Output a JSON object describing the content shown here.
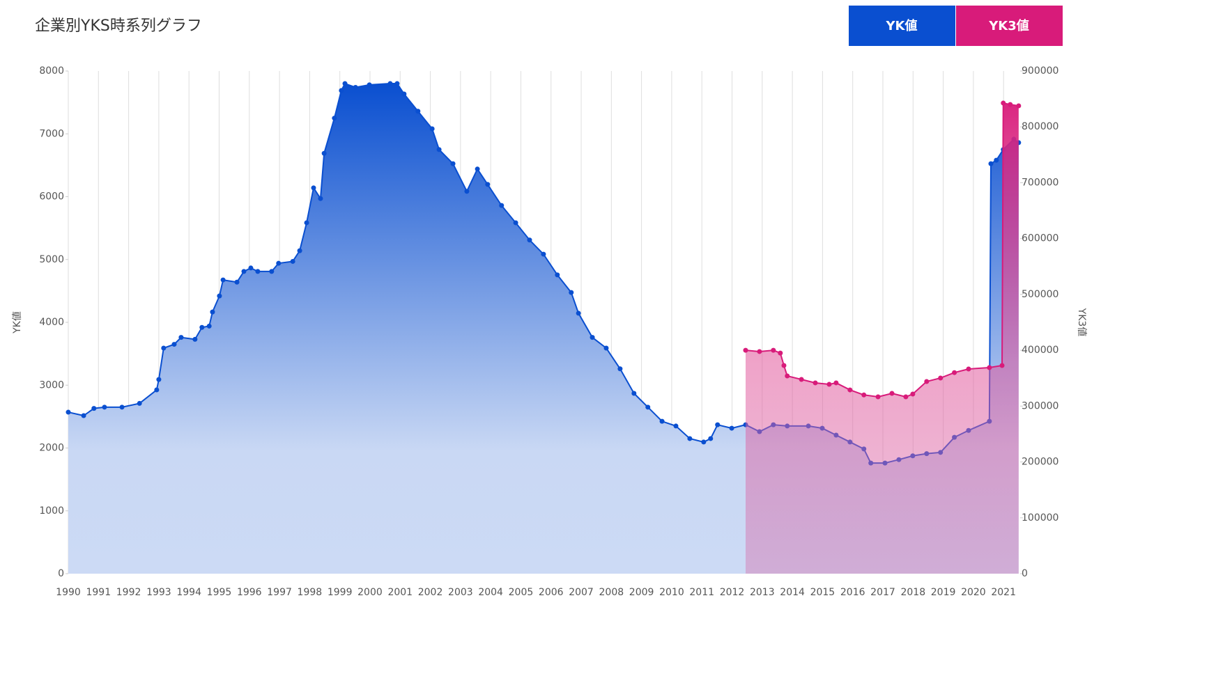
{
  "chart_data": {
    "type": "area",
    "title": "企業別YKS時系列グラフ",
    "y_label": "YK値",
    "y2_label": "YK3値",
    "xlim": [
      1990,
      2021.55
    ],
    "xticks": [
      1990,
      1991,
      1992,
      1993,
      1994,
      1995,
      1996,
      1997,
      1998,
      1999,
      2000,
      2001,
      2002,
      2003,
      2004,
      2005,
      2006,
      2007,
      2008,
      2009,
      2010,
      2011,
      2012,
      2013,
      2014,
      2015,
      2016,
      2017,
      2018,
      2019,
      2020,
      2021
    ],
    "ylim": [
      0,
      8000
    ],
    "yticks": [
      0,
      1000,
      2000,
      3000,
      4000,
      5000,
      6000,
      7000,
      8000
    ],
    "y2lim": [
      0,
      900000
    ],
    "y2ticks": [
      0,
      100000,
      200000,
      300000,
      400000,
      500000,
      600000,
      700000,
      800000,
      900000
    ],
    "grid": true,
    "series": [
      {
        "name": "YK値",
        "color": "#0a4fd0",
        "x": [
          1990.0,
          1990.51,
          1990.85,
          1991.2,
          1991.78,
          1992.36,
          1992.93,
          1993.0,
          1993.16,
          1993.51,
          1993.74,
          1994.2,
          1994.43,
          1994.67,
          1994.78,
          1995.01,
          1995.13,
          1995.59,
          1995.82,
          1996.05,
          1996.28,
          1996.74,
          1996.97,
          1997.44,
          1997.67,
          1997.9,
          1998.13,
          1998.36,
          1998.48,
          1998.82,
          1999.05,
          1999.17,
          1999.52,
          1999.98,
          2000.67,
          2000.9,
          2001.13,
          2001.59,
          2002.06,
          2002.29,
          2002.75,
          2003.21,
          2003.56,
          2003.9,
          2004.36,
          2004.83,
          2005.29,
          2005.75,
          2006.21,
          2006.67,
          2006.91,
          2007.37,
          2007.83,
          2008.29,
          2008.75,
          2009.21,
          2009.68,
          2010.14,
          2010.6,
          2011.06,
          2011.29,
          2011.52,
          2011.99,
          2012.45,
          2012.91,
          2013.37,
          2013.83,
          2014.53,
          2014.99,
          2015.45,
          2015.91,
          2016.37,
          2016.6,
          2017.07,
          2017.53,
          2017.99,
          2018.45,
          2018.91,
          2019.37,
          2019.84,
          2020.53,
          2020.58,
          2020.76,
          2020.99,
          2021.34,
          2021.5
        ],
        "values": [
          2570,
          2515,
          2630,
          2650,
          2650,
          2710,
          2925,
          3090,
          3590,
          3650,
          3760,
          3730,
          3920,
          3940,
          4165,
          4420,
          4675,
          4640,
          4810,
          4865,
          4810,
          4810,
          4940,
          4970,
          5140,
          5585,
          6140,
          5970,
          6690,
          7250,
          7690,
          7800,
          7740,
          7780,
          7800,
          7800,
          7635,
          7360,
          7080,
          6750,
          6525,
          6085,
          6440,
          6195,
          5860,
          5585,
          5310,
          5085,
          4755,
          4475,
          4145,
          3760,
          3590,
          3260,
          2870,
          2650,
          2425,
          2350,
          2150,
          2095,
          2150,
          2370,
          2315,
          2370,
          2260,
          2370,
          2350,
          2350,
          2315,
          2205,
          2095,
          1985,
          1760,
          1760,
          1815,
          1875,
          1910,
          1930,
          2170,
          2280,
          2425,
          6525,
          6580,
          6750,
          6915,
          6860
        ]
      },
      {
        "name": "YK3値",
        "color": "#d81b7a",
        "axis": "y2",
        "x": [
          2012.45,
          2012.91,
          2013.37,
          2013.6,
          2013.72,
          2013.83,
          2014.3,
          2014.76,
          2015.22,
          2015.45,
          2015.91,
          2016.37,
          2016.84,
          2017.3,
          2017.76,
          2017.99,
          2018.45,
          2018.91,
          2019.37,
          2019.84,
          2020.53,
          2020.95,
          2020.99,
          2021.22,
          2021.5
        ],
        "values": [
          400000,
          397700,
          400000,
          395000,
          372700,
          354000,
          347800,
          341600,
          339000,
          341600,
          329000,
          320000,
          316600,
          322800,
          316600,
          321600,
          344000,
          350300,
          360000,
          366500,
          369000,
          372700,
          842600,
          840000,
          837700
        ]
      }
    ]
  }
}
